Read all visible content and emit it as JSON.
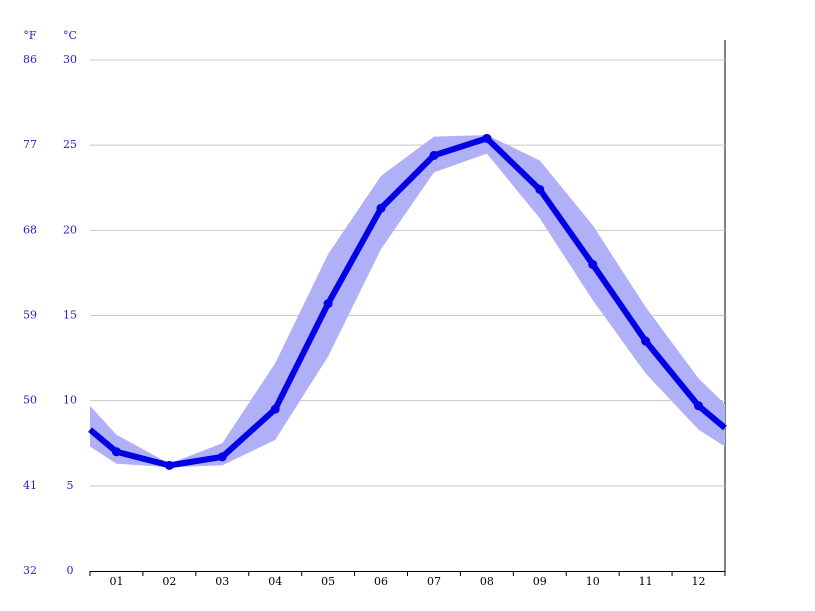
{
  "chart_data": {
    "type": "line",
    "y_label": "°C",
    "y2_label": "°F",
    "x": [
      0.5,
      1,
      2,
      3,
      4,
      5,
      6,
      7,
      8,
      9,
      10,
      11,
      12,
      12.5
    ],
    "xlim": [
      0.5,
      12.5
    ],
    "xticks": [
      {
        "value": 1,
        "label": "01"
      },
      {
        "value": 2,
        "label": "02"
      },
      {
        "value": 3,
        "label": "03"
      },
      {
        "value": 4,
        "label": "04"
      },
      {
        "value": 5,
        "label": "05"
      },
      {
        "value": 6,
        "label": "06"
      },
      {
        "value": 7,
        "label": "07"
      },
      {
        "value": 8,
        "label": "08"
      },
      {
        "value": 9,
        "label": "09"
      },
      {
        "value": 10,
        "label": "10"
      },
      {
        "value": 11,
        "label": "11"
      },
      {
        "value": 12,
        "label": "12"
      }
    ],
    "ylim": [
      0,
      30
    ],
    "yticks": [
      0,
      5,
      10,
      15,
      20,
      25,
      30
    ],
    "y2lim": [
      32,
      86
    ],
    "y2ticks": [
      32,
      41,
      50,
      59,
      68,
      77,
      86
    ],
    "grid": true,
    "series": [
      {
        "color": "#0000e6",
        "values": [
          8.3,
          7.0,
          6.2,
          6.7,
          9.5,
          15.7,
          21.3,
          24.4,
          25.4,
          22.4,
          18.0,
          13.5,
          9.7,
          8.4
        ]
      }
    ],
    "band": {
      "color": "#b0b0f8",
      "upper": [
        9.7,
        8.0,
        6.3,
        7.5,
        12.2,
        18.6,
        23.2,
        25.5,
        25.6,
        24.1,
        20.3,
        15.5,
        11.3,
        9.8
      ],
      "lower": [
        7.3,
        6.3,
        6.1,
        6.2,
        7.7,
        12.6,
        18.9,
        23.4,
        24.5,
        20.7,
        15.9,
        11.6,
        8.3,
        7.3
      ]
    }
  }
}
